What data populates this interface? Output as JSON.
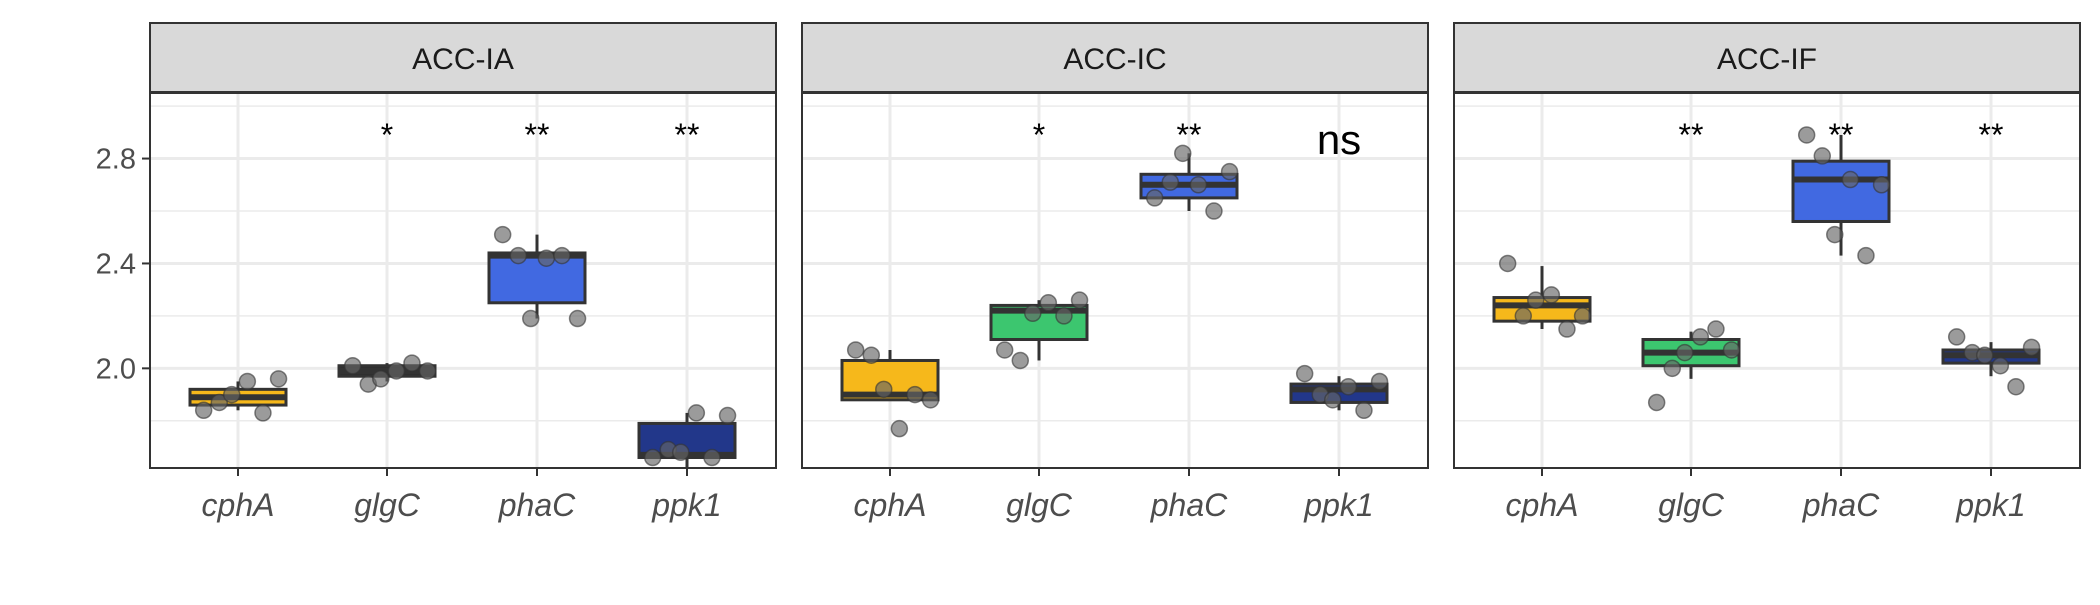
{
  "chart_data": {
    "type": "boxplot",
    "facets": [
      "ACC-IA",
      "ACC-IC",
      "ACC-IF"
    ],
    "categories": [
      "cphA",
      "glgC",
      "phaC",
      "ppk1"
    ],
    "y_ticks": [
      "2.0",
      "2.4",
      "2.8"
    ],
    "ylim": [
      1.62,
      3.05
    ],
    "grid": true,
    "colors": {
      "cphA": "#F6B81B",
      "glgC_ACC-IA": "#2E2E2E",
      "glgC": "#3CC66F",
      "phaC": "#4169E1",
      "ppk1": "#22378A",
      "point": "#666666",
      "strip_bg": "#D9D9D9"
    },
    "panels": [
      {
        "facet": "ACC-IA",
        "boxes": [
          {
            "category": "cphA",
            "q1": 1.86,
            "median": 1.89,
            "q3": 1.92,
            "whisker_low": 1.84,
            "whisker_high": 1.95,
            "fill": "#F6B81B",
            "points": [
              1.84,
              1.87,
              1.9,
              1.95,
              1.83,
              1.96
            ]
          },
          {
            "category": "glgC",
            "q1": 1.97,
            "median": 1.99,
            "q3": 2.01,
            "whisker_low": 1.95,
            "whisker_high": 2.02,
            "fill": "#2E2E2E",
            "points": [
              2.01,
              1.94,
              1.96,
              1.99,
              2.02,
              1.99
            ]
          },
          {
            "category": "phaC",
            "q1": 2.25,
            "median": 2.43,
            "q3": 2.44,
            "whisker_low": 2.19,
            "whisker_high": 2.51,
            "fill": "#4169E1",
            "points": [
              2.51,
              2.43,
              2.19,
              2.42,
              2.43,
              2.19
            ]
          },
          {
            "category": "ppk1",
            "q1": 1.66,
            "median": 1.67,
            "q3": 1.79,
            "whisker_low": 1.62,
            "whisker_high": 1.83,
            "fill": "#22378A",
            "points": [
              1.66,
              1.69,
              1.68,
              1.83,
              1.66,
              1.82
            ]
          }
        ],
        "signif": [
          "",
          "*",
          "**",
          "**"
        ]
      },
      {
        "facet": "ACC-IC",
        "boxes": [
          {
            "category": "cphA",
            "q1": 1.88,
            "median": 1.9,
            "q3": 2.03,
            "whisker_low": 1.88,
            "whisker_high": 2.07,
            "fill": "#F6B81B",
            "points": [
              2.07,
              2.05,
              1.92,
              1.77,
              1.9,
              1.88
            ]
          },
          {
            "category": "glgC",
            "q1": 2.11,
            "median": 2.22,
            "q3": 2.24,
            "whisker_low": 2.03,
            "whisker_high": 2.26,
            "fill": "#3CC66F",
            "points": [
              2.07,
              2.03,
              2.21,
              2.25,
              2.2,
              2.26
            ]
          },
          {
            "category": "phaC",
            "q1": 2.65,
            "median": 2.7,
            "q3": 2.74,
            "whisker_low": 2.6,
            "whisker_high": 2.82,
            "fill": "#4169E1",
            "points": [
              2.65,
              2.71,
              2.82,
              2.7,
              2.6,
              2.75
            ]
          },
          {
            "category": "ppk1",
            "q1": 1.87,
            "median": 1.92,
            "q3": 1.94,
            "whisker_low": 1.84,
            "whisker_high": 1.97,
            "fill": "#22378A",
            "points": [
              1.98,
              1.9,
              1.88,
              1.93,
              1.84,
              1.95
            ]
          }
        ],
        "signif": [
          "",
          "*",
          "**",
          "ns"
        ]
      },
      {
        "facet": "ACC-IF",
        "boxes": [
          {
            "category": "cphA",
            "q1": 2.18,
            "median": 2.24,
            "q3": 2.27,
            "whisker_low": 2.15,
            "whisker_high": 2.39,
            "fill": "#F6B81B",
            "points": [
              2.4,
              2.2,
              2.26,
              2.28,
              2.15,
              2.2
            ]
          },
          {
            "category": "glgC",
            "q1": 2.01,
            "median": 2.06,
            "q3": 2.11,
            "whisker_low": 1.96,
            "whisker_high": 2.14,
            "fill": "#3CC66F",
            "points": [
              1.87,
              2.0,
              2.06,
              2.12,
              2.15,
              2.07
            ]
          },
          {
            "category": "phaC",
            "q1": 2.56,
            "median": 2.72,
            "q3": 2.79,
            "whisker_low": 2.43,
            "whisker_high": 2.89,
            "fill": "#4169E1",
            "points": [
              2.89,
              2.81,
              2.51,
              2.72,
              2.43,
              2.7
            ]
          },
          {
            "category": "ppk1",
            "q1": 2.02,
            "median": 2.05,
            "q3": 2.07,
            "whisker_low": 1.97,
            "whisker_high": 2.1,
            "fill": "#22378A",
            "points": [
              2.12,
              2.06,
              2.05,
              2.01,
              1.93,
              2.08
            ]
          }
        ],
        "signif": [
          "",
          "**",
          "**",
          "**"
        ]
      }
    ]
  }
}
